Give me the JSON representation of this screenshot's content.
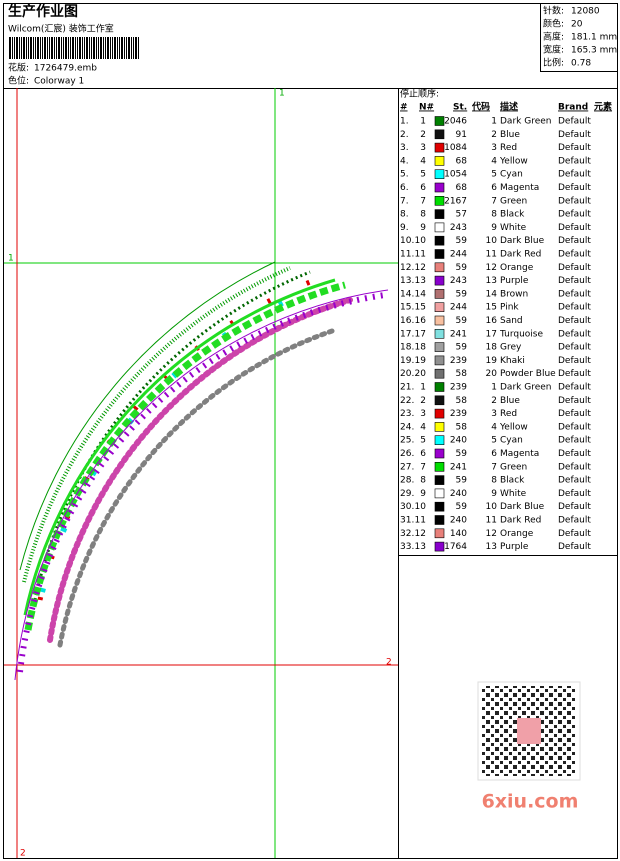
{
  "header": {
    "title": "生产作业图",
    "subtitle": "Wilcom(汇宸) 装饰工作室",
    "design_label": "花版:",
    "design_file": "1726479.emb",
    "colorway_label": "色位:",
    "colorway": "Colorway 1"
  },
  "stats": [
    {
      "label": "针数:",
      "value": "12080"
    },
    {
      "label": "颜色:",
      "value": "20"
    },
    {
      "label": "高度:",
      "value": "181.1 mm"
    },
    {
      "label": "宽度:",
      "value": "165.3 mm"
    },
    {
      "label": "比例:",
      "value": "0.78"
    }
  ],
  "guides": [
    {
      "label": "1"
    },
    {
      "label": "2"
    }
  ],
  "table": {
    "title": "停止顺序:",
    "columns": [
      "#",
      "N#",
      "St.",
      "代码",
      "描述",
      "Brand",
      "元素"
    ],
    "rows": [
      {
        "index": "1.",
        "needle": 1,
        "stitches": 2046,
        "code": 1,
        "description": "Dark Green",
        "brand": "Default",
        "color": "#008000"
      },
      {
        "index": "2.",
        "needle": 2,
        "stitches": 91,
        "code": 2,
        "description": "Blue",
        "brand": "Default",
        "color": "#111111"
      },
      {
        "index": "3.",
        "needle": 3,
        "stitches": 1084,
        "code": 3,
        "description": "Red",
        "brand": "Default",
        "color": "#e00000"
      },
      {
        "index": "4.",
        "needle": 4,
        "stitches": 68,
        "code": 4,
        "description": "Yellow",
        "brand": "Default",
        "color": "#ffff00"
      },
      {
        "index": "5.",
        "needle": 5,
        "stitches": 1054,
        "code": 5,
        "description": "Cyan",
        "brand": "Default",
        "color": "#00ffff"
      },
      {
        "index": "6.",
        "needle": 6,
        "stitches": 68,
        "code": 6,
        "description": "Magenta",
        "brand": "Default",
        "color": "#9900cc"
      },
      {
        "index": "7.",
        "needle": 7,
        "stitches": 2167,
        "code": 7,
        "description": "Green",
        "brand": "Default",
        "color": "#00dd00"
      },
      {
        "index": "8.",
        "needle": 8,
        "stitches": 57,
        "code": 8,
        "description": "Black",
        "brand": "Default",
        "color": "#000000"
      },
      {
        "index": "9.",
        "needle": 9,
        "stitches": 243,
        "code": 9,
        "description": "White",
        "brand": "Default",
        "color": "#ffffff"
      },
      {
        "index": "10.",
        "needle": 10,
        "stitches": 59,
        "code": 10,
        "description": "Dark Blue",
        "brand": "Default",
        "color": "#000000"
      },
      {
        "index": "11.",
        "needle": 11,
        "stitches": 244,
        "code": 11,
        "description": "Dark Red",
        "brand": "Default",
        "color": "#000000"
      },
      {
        "index": "12.",
        "needle": 12,
        "stitches": 59,
        "code": 12,
        "description": "Orange",
        "brand": "Default",
        "color": "#e8807a"
      },
      {
        "index": "13.",
        "needle": 13,
        "stitches": 243,
        "code": 13,
        "description": "Purple",
        "brand": "Default",
        "color": "#8800cc"
      },
      {
        "index": "14.",
        "needle": 14,
        "stitches": 59,
        "code": 14,
        "description": "Brown",
        "brand": "Default",
        "color": "#b07070"
      },
      {
        "index": "15.",
        "needle": 15,
        "stitches": 244,
        "code": 15,
        "description": "Pink",
        "brand": "Default",
        "color": "#f0a0a0"
      },
      {
        "index": "16.",
        "needle": 16,
        "stitches": 59,
        "code": 16,
        "description": "Sand",
        "brand": "Default",
        "color": "#f8c0a0"
      },
      {
        "index": "17.",
        "needle": 17,
        "stitches": 241,
        "code": 17,
        "description": "Turquoise",
        "brand": "Default",
        "color": "#80e0e0"
      },
      {
        "index": "18.",
        "needle": 18,
        "stitches": 59,
        "code": 18,
        "description": "Grey",
        "brand": "Default",
        "color": "#a0a0a0"
      },
      {
        "index": "19.",
        "needle": 19,
        "stitches": 239,
        "code": 19,
        "description": "Khaki",
        "brand": "Default",
        "color": "#909090"
      },
      {
        "index": "20.",
        "needle": 20,
        "stitches": 58,
        "code": 20,
        "description": "Powder Blue",
        "brand": "Default",
        "color": "#707070"
      },
      {
        "index": "21.",
        "needle": 1,
        "stitches": 239,
        "code": 1,
        "description": "Dark Green",
        "brand": "Default",
        "color": "#008000"
      },
      {
        "index": "22.",
        "needle": 2,
        "stitches": 58,
        "code": 2,
        "description": "Blue",
        "brand": "Default",
        "color": "#111111"
      },
      {
        "index": "23.",
        "needle": 3,
        "stitches": 239,
        "code": 3,
        "description": "Red",
        "brand": "Default",
        "color": "#e00000"
      },
      {
        "index": "24.",
        "needle": 4,
        "stitches": 58,
        "code": 4,
        "description": "Yellow",
        "brand": "Default",
        "color": "#ffff00"
      },
      {
        "index": "25.",
        "needle": 5,
        "stitches": 240,
        "code": 5,
        "description": "Cyan",
        "brand": "Default",
        "color": "#00ffff"
      },
      {
        "index": "26.",
        "needle": 6,
        "stitches": 59,
        "code": 6,
        "description": "Magenta",
        "brand": "Default",
        "color": "#9900cc"
      },
      {
        "index": "27.",
        "needle": 7,
        "stitches": 241,
        "code": 7,
        "description": "Green",
        "brand": "Default",
        "color": "#00dd00"
      },
      {
        "index": "28.",
        "needle": 8,
        "stitches": 59,
        "code": 8,
        "description": "Black",
        "brand": "Default",
        "color": "#000000"
      },
      {
        "index": "29.",
        "needle": 9,
        "stitches": 240,
        "code": 9,
        "description": "White",
        "brand": "Default",
        "color": "#ffffff"
      },
      {
        "index": "30.",
        "needle": 10,
        "stitches": 59,
        "code": 10,
        "description": "Dark Blue",
        "brand": "Default",
        "color": "#000000"
      },
      {
        "index": "31.",
        "needle": 11,
        "stitches": 240,
        "code": 11,
        "description": "Dark Red",
        "brand": "Default",
        "color": "#000000"
      },
      {
        "index": "32.",
        "needle": 12,
        "stitches": 140,
        "code": 12,
        "description": "Orange",
        "brand": "Default",
        "color": "#e8807a"
      },
      {
        "index": "33.",
        "needle": 13,
        "stitches": 1764,
        "code": 13,
        "description": "Purple",
        "brand": "Default",
        "color": "#8800cc"
      }
    ]
  },
  "watermark": "6xiu.com"
}
